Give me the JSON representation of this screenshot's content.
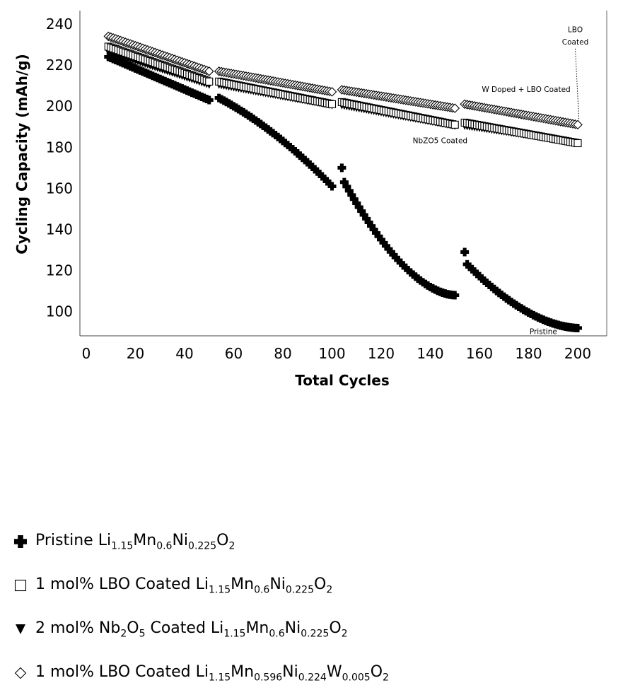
{
  "chart_data": {
    "type": "scatter",
    "xlabel": "Total Cycles",
    "ylabel": "Cycling Capacity (mAh/g)",
    "xlim": [
      0,
      210
    ],
    "ylim": [
      84,
      243
    ],
    "xticks": [
      "0",
      "20",
      "40",
      "60",
      "80",
      "100",
      "120",
      "140",
      "160",
      "180",
      "200"
    ],
    "yticks": [
      "100",
      "120",
      "140",
      "160",
      "180",
      "200",
      "220",
      "240"
    ],
    "grid": false,
    "legend_position": "bottom",
    "series": [
      {
        "name": "Pristine Li1.15Mn0.6Ni0.225O2",
        "marker": "plus",
        "segments": [
          {
            "x": [
              9,
              50
            ],
            "y": [
              224,
              203
            ],
            "curve": "linear"
          },
          {
            "x": [
              54,
              100
            ],
            "y": [
              204,
              161
            ],
            "curve": "concave"
          },
          {
            "x": [
              105,
              150
            ],
            "y": [
              163,
              108
            ],
            "curve": "convex",
            "first_point": [
              104,
              170
            ]
          },
          {
            "x": [
              155,
              200
            ],
            "y": [
              123,
              92
            ],
            "curve": "convex",
            "first_point": [
              154,
              129
            ]
          }
        ]
      },
      {
        "name": "1 mol% LBO Coated Li1.15Mn0.6Ni0.225O2",
        "marker": "square",
        "segments": [
          {
            "x": [
              9,
              50
            ],
            "y": [
              229,
              212
            ]
          },
          {
            "x": [
              54,
              100
            ],
            "y": [
              212,
              201
            ]
          },
          {
            "x": [
              104,
              150
            ],
            "y": [
              202,
              191
            ]
          },
          {
            "x": [
              154,
              200
            ],
            "y": [
              192,
              182
            ]
          }
        ]
      },
      {
        "name": "2 mol% Nb2O5 Coated Li1.15Mn0.6Ni0.225O2",
        "marker": "triangle-down",
        "segments": [
          {
            "x": [
              9,
              50
            ],
            "y": [
              226,
              210
            ]
          },
          {
            "x": [
              54,
              100
            ],
            "y": [
              210,
              200
            ]
          },
          {
            "x": [
              104,
              150
            ],
            "y": [
              200,
              190
            ]
          },
          {
            "x": [
              154,
              200
            ],
            "y": [
              190,
              182
            ]
          }
        ]
      },
      {
        "name": "1 mol% LBO Coated Li1.15Mn0.596Ni0.224W0.005O2",
        "marker": "diamond",
        "segments": [
          {
            "x": [
              9,
              50
            ],
            "y": [
              234,
              217
            ]
          },
          {
            "x": [
              54,
              100
            ],
            "y": [
              217,
              207
            ]
          },
          {
            "x": [
              104,
              150
            ],
            "y": [
              208,
              199
            ]
          },
          {
            "x": [
              154,
              200
            ],
            "y": [
              201,
              191
            ]
          }
        ]
      }
    ],
    "annotations": [
      {
        "text": "LBO",
        "x": 199,
        "y": 236
      },
      {
        "text": "Coated",
        "x": 199,
        "y": 230
      },
      {
        "text": "W Doped + LBO Coated",
        "x": 179,
        "y": 207
      },
      {
        "text": "NbZO5 Coated",
        "x": 144,
        "y": 182
      },
      {
        "text": "Pristine",
        "x": 186,
        "y": 89
      }
    ]
  },
  "legend": {
    "items": [
      {
        "marker": "plus",
        "parts": [
          [
            "Pristine Li",
            ""
          ],
          [
            "1.15",
            "sub"
          ],
          [
            "Mn",
            ""
          ],
          [
            "0.6",
            "sub"
          ],
          [
            "Ni",
            ""
          ],
          [
            "0.225",
            "sub"
          ],
          [
            "O",
            ""
          ],
          [
            "2",
            "sub"
          ]
        ]
      },
      {
        "marker": "square",
        "parts": [
          [
            "1 mol% LBO Coated Li",
            ""
          ],
          [
            "1.15",
            "sub"
          ],
          [
            "Mn",
            ""
          ],
          [
            "0.6",
            "sub"
          ],
          [
            "Ni",
            ""
          ],
          [
            "0.225",
            "sub"
          ],
          [
            "O",
            ""
          ],
          [
            "2",
            "sub"
          ]
        ]
      },
      {
        "marker": "triangle-down",
        "parts": [
          [
            "2 mol% Nb",
            ""
          ],
          [
            "2",
            "sub"
          ],
          [
            "O",
            ""
          ],
          [
            "5",
            "sub"
          ],
          [
            " Coated Li",
            ""
          ],
          [
            "1.15",
            "sub"
          ],
          [
            "Mn",
            ""
          ],
          [
            "0.6",
            "sub"
          ],
          [
            "Ni",
            ""
          ],
          [
            "0.225",
            "sub"
          ],
          [
            "O",
            ""
          ],
          [
            "2",
            "sub"
          ]
        ]
      },
      {
        "marker": "diamond",
        "parts": [
          [
            "1 mol% LBO Coated Li",
            ""
          ],
          [
            "1.15",
            "sub"
          ],
          [
            "Mn",
            ""
          ],
          [
            "0.596",
            "sub"
          ],
          [
            "Ni",
            ""
          ],
          [
            "0.224",
            "sub"
          ],
          [
            "W",
            ""
          ],
          [
            "0.005",
            "sub"
          ],
          [
            "O",
            ""
          ],
          [
            "2",
            "sub"
          ]
        ]
      }
    ]
  }
}
